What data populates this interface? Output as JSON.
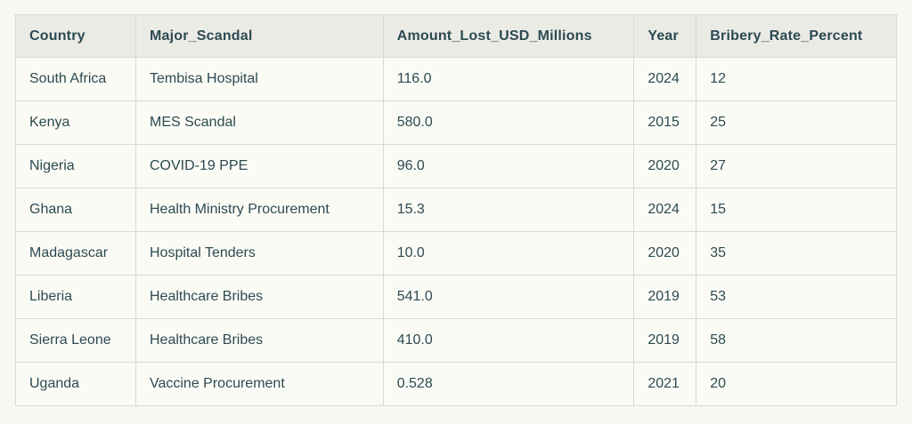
{
  "page": {
    "background": "#f8f8f2"
  },
  "colors": {
    "text": "#2c4a52",
    "header_background": "#ebebe6",
    "row_background": "#fbfbf5",
    "border": "#d9d9d2"
  },
  "chart_data": {
    "type": "table",
    "title": "",
    "columns": [
      "Country",
      "Major_Scandal",
      "Amount_Lost_USD_Millions",
      "Year",
      "Bribery_Rate_Percent"
    ],
    "column_slugs": [
      "country",
      "major-scandal",
      "amount-lost-usd-millions",
      "year",
      "bribery-rate-percent"
    ],
    "column_widths": [
      "13.65%",
      "28.08%",
      "28.48%",
      "7.07%",
      "22.72%"
    ],
    "rows": [
      [
        "South Africa",
        "Tembisa Hospital",
        "116.0",
        "2024",
        "12"
      ],
      [
        "Kenya",
        "MES Scandal",
        "580.0",
        "2015",
        "25"
      ],
      [
        "Nigeria",
        "COVID-19 PPE",
        "96.0",
        "2020",
        "27"
      ],
      [
        "Ghana",
        "Health Ministry Procurement",
        "15.3",
        "2024",
        "15"
      ],
      [
        "Madagascar",
        "Hospital Tenders",
        "10.0",
        "2020",
        "35"
      ],
      [
        "Liberia",
        "Healthcare Bribes",
        "541.0",
        "2019",
        "53"
      ],
      [
        "Sierra Leone",
        "Healthcare Bribes",
        "410.0",
        "2019",
        "58"
      ],
      [
        "Uganda",
        "Vaccine Procurement",
        "0.528",
        "2021",
        "20"
      ]
    ]
  }
}
